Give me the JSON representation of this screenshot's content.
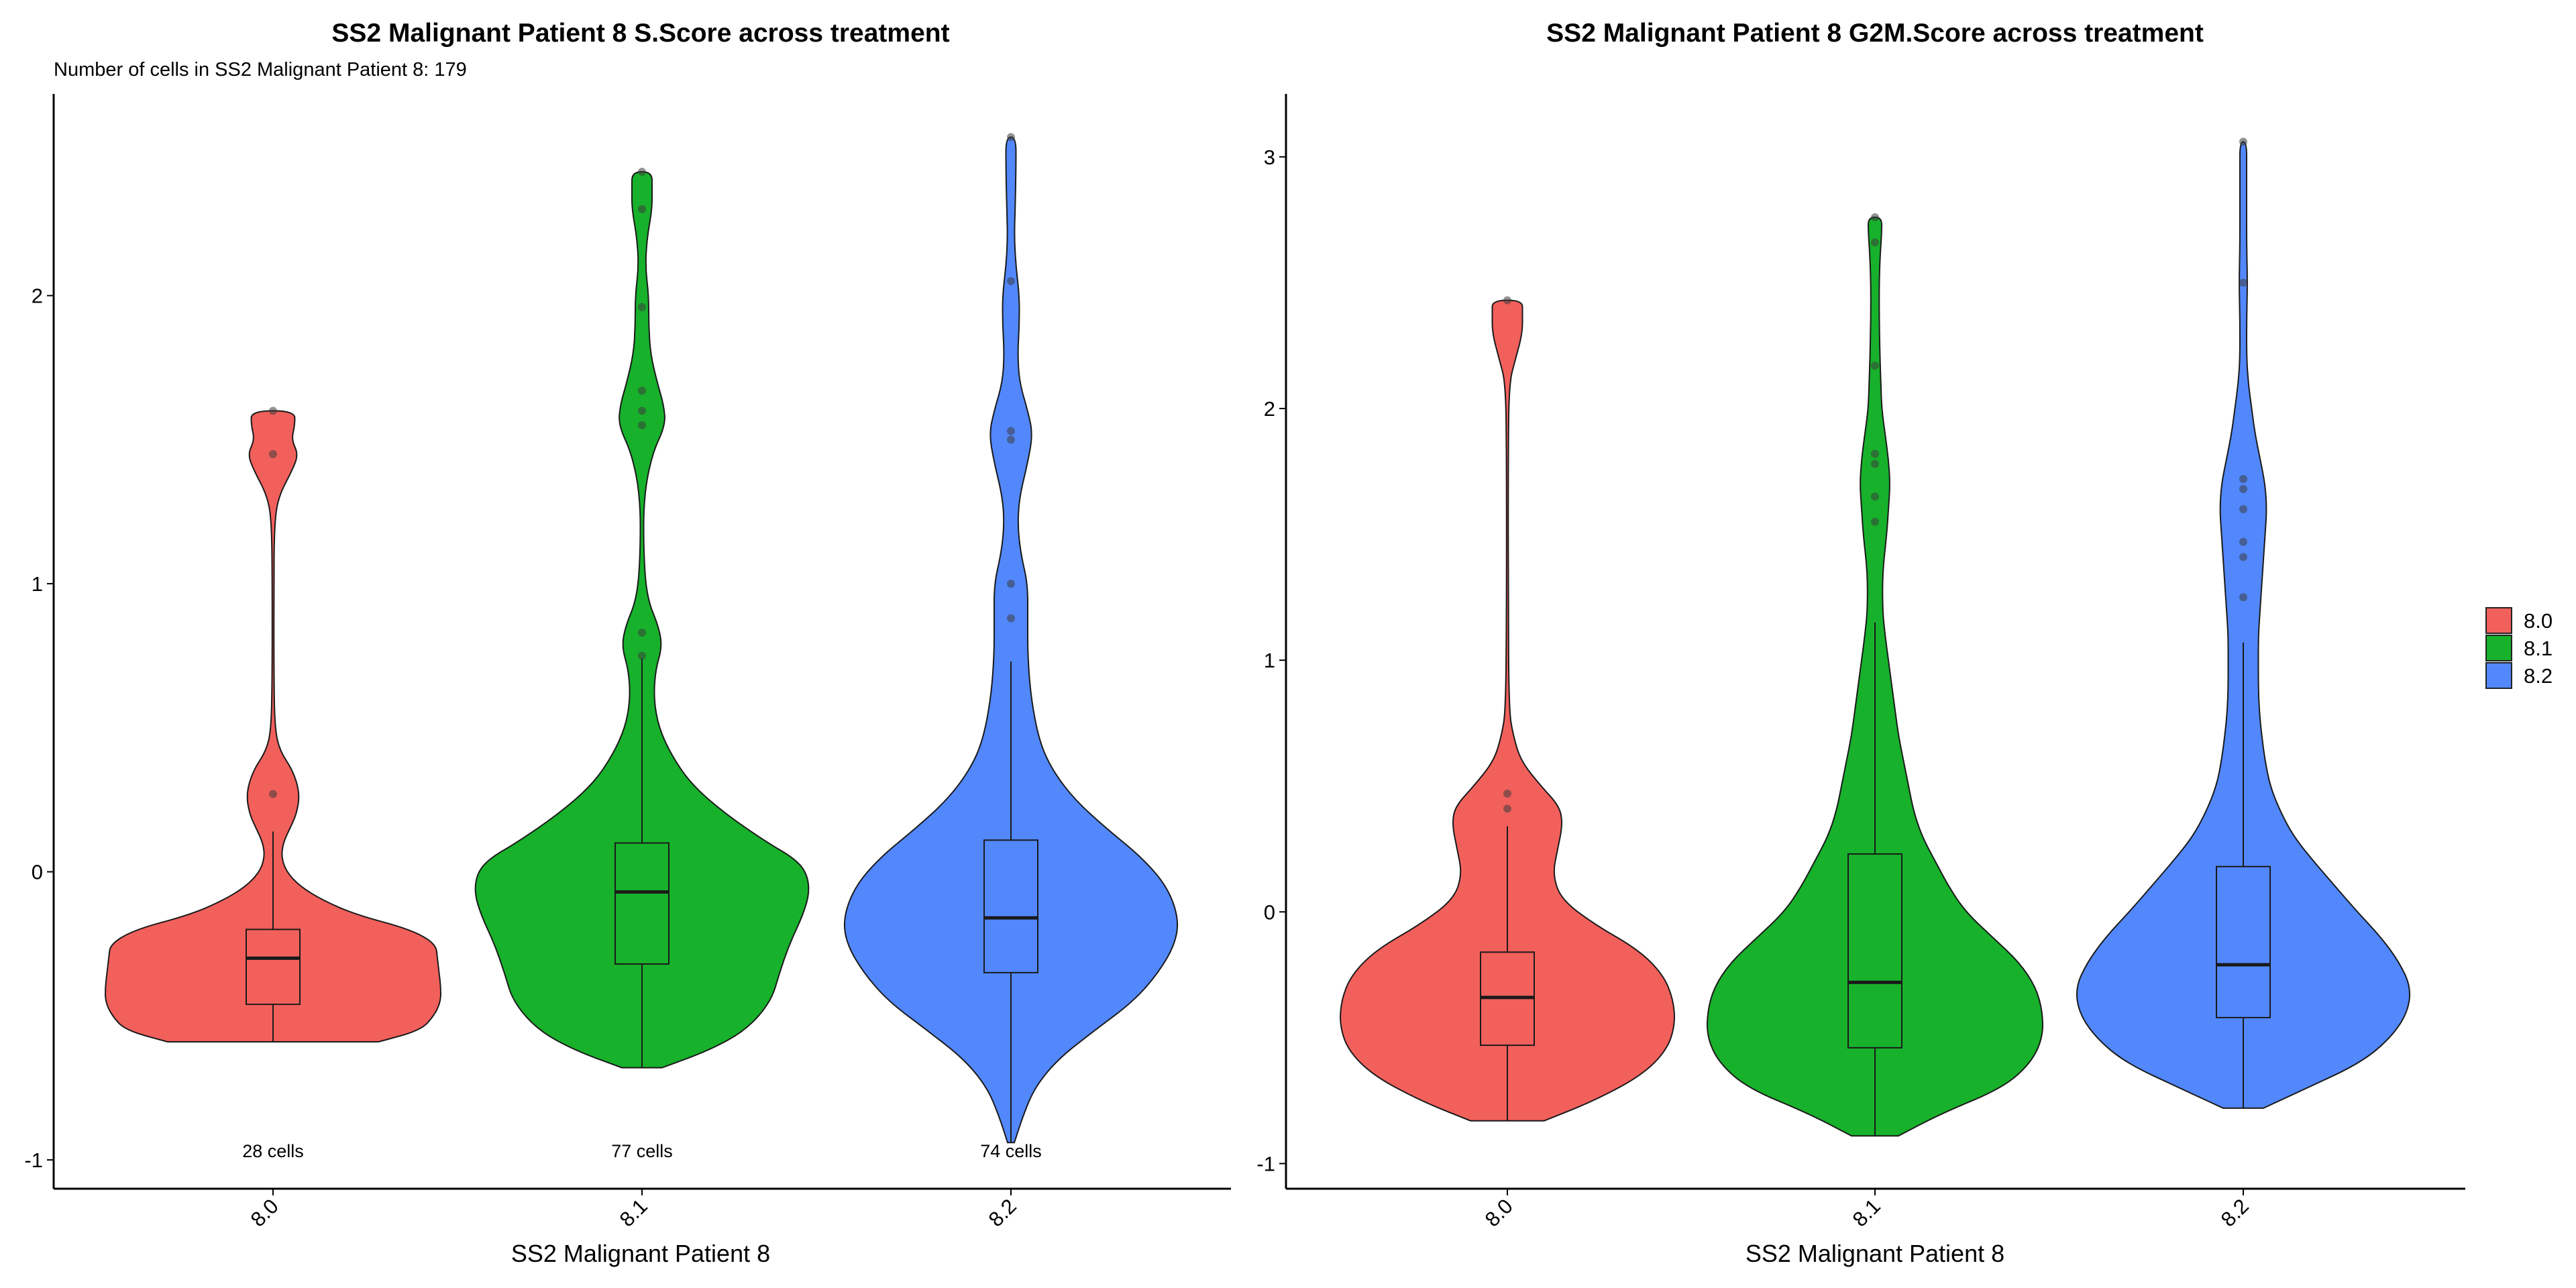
{
  "legend": {
    "placement": "right",
    "items": [
      {
        "label": "8.0",
        "color": "#F2605C"
      },
      {
        "label": "8.1",
        "color": "#17B12B"
      },
      {
        "label": "8.2",
        "color": "#5288FC"
      }
    ]
  },
  "chart_data": [
    {
      "type": "violin",
      "title": "SS2 Malignant Patient 8 S.Score across treatment",
      "subtitle": "Number of cells in SS2 Malignant Patient 8: 179",
      "xlabel": "SS2 Malignant Patient 8",
      "ylabel": "",
      "categories": [
        "8.0",
        "8.1",
        "8.2"
      ],
      "ylim": [
        -1.1,
        2.7
      ],
      "yticks": [
        "-1",
        "0",
        "1",
        "2"
      ],
      "grid": false,
      "counts": [
        "28 cells",
        "77 cells",
        "74 cells"
      ],
      "series": [
        {
          "category": "8.0",
          "min": -0.59,
          "max": 1.6,
          "box": {
            "q1": -0.46,
            "median": -0.3,
            "q3": -0.2,
            "whisker_low": -0.59,
            "whisker_high": 0.14
          },
          "outliers": [
            0.27,
            1.45,
            1.6
          ],
          "density": [
            [
              -0.59,
              0.63
            ],
            [
              -0.55,
              0.88
            ],
            [
              -0.5,
              0.96
            ],
            [
              -0.45,
              1.0
            ],
            [
              -0.4,
              1.0
            ],
            [
              -0.35,
              0.99
            ],
            [
              -0.3,
              0.98
            ],
            [
              -0.25,
              0.97
            ],
            [
              -0.2,
              0.82
            ],
            [
              -0.15,
              0.5
            ],
            [
              -0.1,
              0.3
            ],
            [
              -0.05,
              0.16
            ],
            [
              0.0,
              0.08
            ],
            [
              0.05,
              0.05
            ],
            [
              0.1,
              0.06
            ],
            [
              0.15,
              0.1
            ],
            [
              0.2,
              0.14
            ],
            [
              0.27,
              0.16
            ],
            [
              0.35,
              0.12
            ],
            [
              0.42,
              0.04
            ],
            [
              0.5,
              0.01
            ],
            [
              0.7,
              0.005
            ],
            [
              1.0,
              0.005
            ],
            [
              1.2,
              0.008
            ],
            [
              1.3,
              0.03
            ],
            [
              1.4,
              0.12
            ],
            [
              1.45,
              0.15
            ],
            [
              1.5,
              0.11
            ],
            [
              1.55,
              0.13
            ],
            [
              1.6,
              0.13
            ]
          ]
        },
        {
          "category": "8.1",
          "min": -0.68,
          "max": 2.43,
          "box": {
            "q1": -0.32,
            "median": -0.07,
            "q3": 0.1,
            "whisker_low": -0.68,
            "whisker_high": 0.74
          },
          "outliers": [
            0.75,
            0.83,
            1.55,
            1.6,
            1.67,
            1.96,
            2.3,
            2.43
          ],
          "density": [
            [
              -0.68,
              0.12
            ],
            [
              -0.62,
              0.4
            ],
            [
              -0.55,
              0.62
            ],
            [
              -0.45,
              0.77
            ],
            [
              -0.35,
              0.82
            ],
            [
              -0.25,
              0.88
            ],
            [
              -0.15,
              0.96
            ],
            [
              -0.07,
              1.0
            ],
            [
              0.0,
              0.98
            ],
            [
              0.05,
              0.9
            ],
            [
              0.1,
              0.75
            ],
            [
              0.2,
              0.5
            ],
            [
              0.3,
              0.3
            ],
            [
              0.4,
              0.18
            ],
            [
              0.5,
              0.1
            ],
            [
              0.6,
              0.07
            ],
            [
              0.7,
              0.08
            ],
            [
              0.78,
              0.12
            ],
            [
              0.85,
              0.1
            ],
            [
              0.95,
              0.03
            ],
            [
              1.1,
              0.01
            ],
            [
              1.3,
              0.01
            ],
            [
              1.45,
              0.06
            ],
            [
              1.55,
              0.14
            ],
            [
              1.62,
              0.13
            ],
            [
              1.7,
              0.09
            ],
            [
              1.8,
              0.05
            ],
            [
              1.9,
              0.04
            ],
            [
              2.0,
              0.04
            ],
            [
              2.1,
              0.02
            ],
            [
              2.2,
              0.03
            ],
            [
              2.3,
              0.06
            ],
            [
              2.37,
              0.06
            ],
            [
              2.43,
              0.06
            ]
          ]
        },
        {
          "category": "8.2",
          "min": -0.94,
          "max": 2.55,
          "box": {
            "q1": -0.35,
            "median": -0.16,
            "q3": 0.11,
            "whisker_low": -0.94,
            "whisker_high": 0.73
          },
          "outliers": [
            0.88,
            1.0,
            1.5,
            1.53,
            2.05,
            2.55
          ],
          "density": [
            [
              -0.94,
              0.02
            ],
            [
              -0.85,
              0.07
            ],
            [
              -0.75,
              0.14
            ],
            [
              -0.65,
              0.28
            ],
            [
              -0.55,
              0.5
            ],
            [
              -0.45,
              0.73
            ],
            [
              -0.35,
              0.88
            ],
            [
              -0.25,
              0.98
            ],
            [
              -0.16,
              1.0
            ],
            [
              -0.05,
              0.93
            ],
            [
              0.05,
              0.78
            ],
            [
              0.15,
              0.57
            ],
            [
              0.25,
              0.38
            ],
            [
              0.35,
              0.25
            ],
            [
              0.45,
              0.17
            ],
            [
              0.6,
              0.12
            ],
            [
              0.75,
              0.1
            ],
            [
              0.88,
              0.1
            ],
            [
              1.0,
              0.1
            ],
            [
              1.1,
              0.06
            ],
            [
              1.2,
              0.04
            ],
            [
              1.3,
              0.05
            ],
            [
              1.42,
              0.1
            ],
            [
              1.52,
              0.13
            ],
            [
              1.6,
              0.1
            ],
            [
              1.7,
              0.05
            ],
            [
              1.8,
              0.04
            ],
            [
              1.9,
              0.05
            ],
            [
              2.0,
              0.05
            ],
            [
              2.1,
              0.03
            ],
            [
              2.2,
              0.02
            ],
            [
              2.3,
              0.025
            ],
            [
              2.45,
              0.03
            ],
            [
              2.55,
              0.03
            ]
          ]
        }
      ]
    },
    {
      "type": "violin",
      "title": "SS2 Malignant Patient 8 G2M.Score across treatment",
      "subtitle": "",
      "xlabel": "SS2 Malignant Patient 8",
      "ylabel": "",
      "categories": [
        "8.0",
        "8.1",
        "8.2"
      ],
      "ylim": [
        -1.1,
        3.25
      ],
      "yticks": [
        "-1",
        "0",
        "1",
        "2",
        "3"
      ],
      "grid": false,
      "counts": [],
      "series": [
        {
          "category": "8.0",
          "min": -0.83,
          "max": 2.43,
          "box": {
            "q1": -0.53,
            "median": -0.34,
            "q3": -0.16,
            "whisker_low": -0.83,
            "whisker_high": 0.34
          },
          "outliers": [
            0.41,
            0.47,
            2.43
          ],
          "density": [
            [
              -0.83,
              0.22
            ],
            [
              -0.75,
              0.52
            ],
            [
              -0.65,
              0.8
            ],
            [
              -0.55,
              0.95
            ],
            [
              -0.45,
              1.0
            ],
            [
              -0.35,
              0.99
            ],
            [
              -0.25,
              0.93
            ],
            [
              -0.15,
              0.78
            ],
            [
              -0.05,
              0.52
            ],
            [
              0.05,
              0.32
            ],
            [
              0.15,
              0.27
            ],
            [
              0.25,
              0.3
            ],
            [
              0.35,
              0.33
            ],
            [
              0.42,
              0.31
            ],
            [
              0.5,
              0.2
            ],
            [
              0.6,
              0.08
            ],
            [
              0.7,
              0.035
            ],
            [
              0.8,
              0.01
            ],
            [
              1.2,
              0.005
            ],
            [
              1.8,
              0.005
            ],
            [
              2.1,
              0.01
            ],
            [
              2.2,
              0.05
            ],
            [
              2.3,
              0.09
            ],
            [
              2.38,
              0.09
            ],
            [
              2.43,
              0.09
            ]
          ]
        },
        {
          "category": "8.1",
          "min": -0.89,
          "max": 2.76,
          "box": {
            "q1": -0.54,
            "median": -0.28,
            "q3": 0.23,
            "whisker_low": -0.89,
            "whisker_high": 1.15
          },
          "outliers": [
            1.55,
            1.65,
            1.78,
            1.82,
            2.17,
            2.66,
            2.76
          ],
          "density": [
            [
              -0.89,
              0.14
            ],
            [
              -0.8,
              0.4
            ],
            [
              -0.7,
              0.76
            ],
            [
              -0.6,
              0.93
            ],
            [
              -0.5,
              1.0
            ],
            [
              -0.4,
              1.0
            ],
            [
              -0.3,
              0.96
            ],
            [
              -0.2,
              0.86
            ],
            [
              -0.1,
              0.7
            ],
            [
              0.0,
              0.54
            ],
            [
              0.1,
              0.44
            ],
            [
              0.2,
              0.36
            ],
            [
              0.3,
              0.28
            ],
            [
              0.4,
              0.23
            ],
            [
              0.5,
              0.2
            ],
            [
              0.6,
              0.17
            ],
            [
              0.7,
              0.14
            ],
            [
              0.8,
              0.12
            ],
            [
              0.9,
              0.1
            ],
            [
              1.0,
              0.08
            ],
            [
              1.1,
              0.06
            ],
            [
              1.2,
              0.045
            ],
            [
              1.35,
              0.045
            ],
            [
              1.5,
              0.07
            ],
            [
              1.6,
              0.08
            ],
            [
              1.7,
              0.09
            ],
            [
              1.8,
              0.08
            ],
            [
              1.9,
              0.06
            ],
            [
              2.0,
              0.04
            ],
            [
              2.1,
              0.035
            ],
            [
              2.2,
              0.03
            ],
            [
              2.35,
              0.025
            ],
            [
              2.5,
              0.025
            ],
            [
              2.6,
              0.03
            ],
            [
              2.7,
              0.04
            ],
            [
              2.76,
              0.04
            ]
          ]
        },
        {
          "category": "8.2",
          "min": -0.78,
          "max": 3.06,
          "box": {
            "q1": -0.42,
            "median": -0.21,
            "q3": 0.18,
            "whisker_low": -0.78,
            "whisker_high": 1.07
          },
          "outliers": [
            1.25,
            1.41,
            1.47,
            1.6,
            1.68,
            1.72,
            2.5,
            3.06
          ],
          "density": [
            [
              -0.78,
              0.12
            ],
            [
              -0.7,
              0.38
            ],
            [
              -0.6,
              0.7
            ],
            [
              -0.5,
              0.88
            ],
            [
              -0.4,
              0.98
            ],
            [
              -0.3,
              1.0
            ],
            [
              -0.2,
              0.93
            ],
            [
              -0.1,
              0.82
            ],
            [
              0.0,
              0.68
            ],
            [
              0.1,
              0.55
            ],
            [
              0.2,
              0.42
            ],
            [
              0.3,
              0.3
            ],
            [
              0.4,
              0.22
            ],
            [
              0.5,
              0.16
            ],
            [
              0.6,
              0.13
            ],
            [
              0.7,
              0.11
            ],
            [
              0.8,
              0.095
            ],
            [
              0.9,
              0.09
            ],
            [
              1.0,
              0.09
            ],
            [
              1.1,
              0.09
            ],
            [
              1.2,
              0.1
            ],
            [
              1.3,
              0.11
            ],
            [
              1.4,
              0.12
            ],
            [
              1.5,
              0.13
            ],
            [
              1.6,
              0.14
            ],
            [
              1.7,
              0.13
            ],
            [
              1.8,
              0.1
            ],
            [
              1.9,
              0.07
            ],
            [
              2.0,
              0.05
            ],
            [
              2.1,
              0.03
            ],
            [
              2.2,
              0.02
            ],
            [
              2.35,
              0.02
            ],
            [
              2.5,
              0.025
            ],
            [
              2.65,
              0.02
            ],
            [
              2.8,
              0.02
            ],
            [
              2.95,
              0.02
            ],
            [
              3.06,
              0.02
            ]
          ]
        }
      ]
    }
  ]
}
